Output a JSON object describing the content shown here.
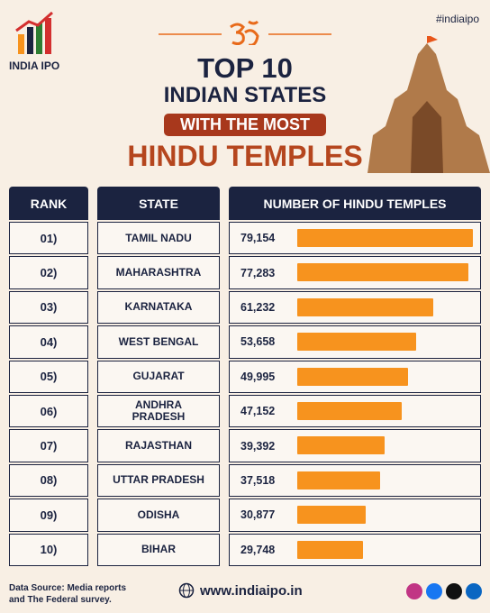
{
  "brand": "INDIA IPO",
  "hashtag": "#indiaipo",
  "title_lines": [
    "TOP 10",
    "INDIAN STATES",
    "WITH THE MOST",
    "HINDU TEMPLES"
  ],
  "columns": [
    "RANK",
    "STATE",
    "NUMBER OF HINDU TEMPLES"
  ],
  "chart_data": {
    "type": "bar",
    "color": "#f7931e",
    "ranks": [
      "01)",
      "02)",
      "03)",
      "04)",
      "05)",
      "06)",
      "07)",
      "08)",
      "09)",
      "10)"
    ],
    "categories": [
      "TAMIL NADU",
      "MAHARASHTRA",
      "KARNATAKA",
      "WEST BENGAL",
      "GUJARAT",
      "ANDHRA PRADESH",
      "RAJASTHAN",
      "UTTAR PRADESH",
      "ODISHA",
      "BIHAR"
    ],
    "values": [
      79154,
      77283,
      61232,
      53658,
      49995,
      47152,
      39392,
      37518,
      30877,
      29748
    ],
    "value_labels": [
      "79,154",
      "77,283",
      "61,232",
      "53,658",
      "49,995",
      "47,152",
      "39,392",
      "37,518",
      "30,877",
      "29,748"
    ]
  },
  "footer": {
    "source_lines": [
      "Data Source: Media reports",
      "and The Federal survey."
    ],
    "website": "www.indiaipo.in"
  }
}
